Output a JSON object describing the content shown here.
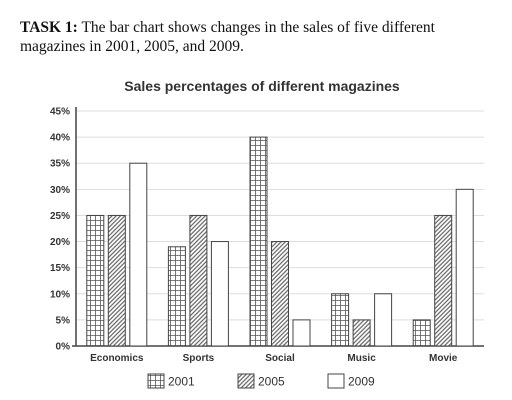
{
  "task": {
    "label": "TASK 1:",
    "text": "The bar chart shows changes in the sales of five different magazines in 2001, 2005, and 2009."
  },
  "colors": {
    "ink": "#444444",
    "grid": "#dddddd",
    "fill": "#ffffff"
  },
  "chart_data": {
    "type": "bar",
    "title": "Sales percentages of different magazines",
    "xlabel": "",
    "ylabel": "",
    "ylim": [
      0,
      45
    ],
    "y_ticks": [
      "0%",
      "5%",
      "10%",
      "15%",
      "20%",
      "25%",
      "30%",
      "35%",
      "40%",
      "45%"
    ],
    "grid": true,
    "legend_position": "bottom",
    "categories": [
      "Economics",
      "Sports",
      "Social",
      "Music",
      "Movie"
    ],
    "series": [
      {
        "name": "2001",
        "pattern": "grid",
        "values": [
          25,
          19,
          40,
          10,
          5
        ]
      },
      {
        "name": "2005",
        "pattern": "diagonal",
        "values": [
          25,
          25,
          20,
          5,
          25
        ]
      },
      {
        "name": "2009",
        "pattern": "plain",
        "values": [
          35,
          20,
          5,
          10,
          30
        ]
      }
    ]
  }
}
